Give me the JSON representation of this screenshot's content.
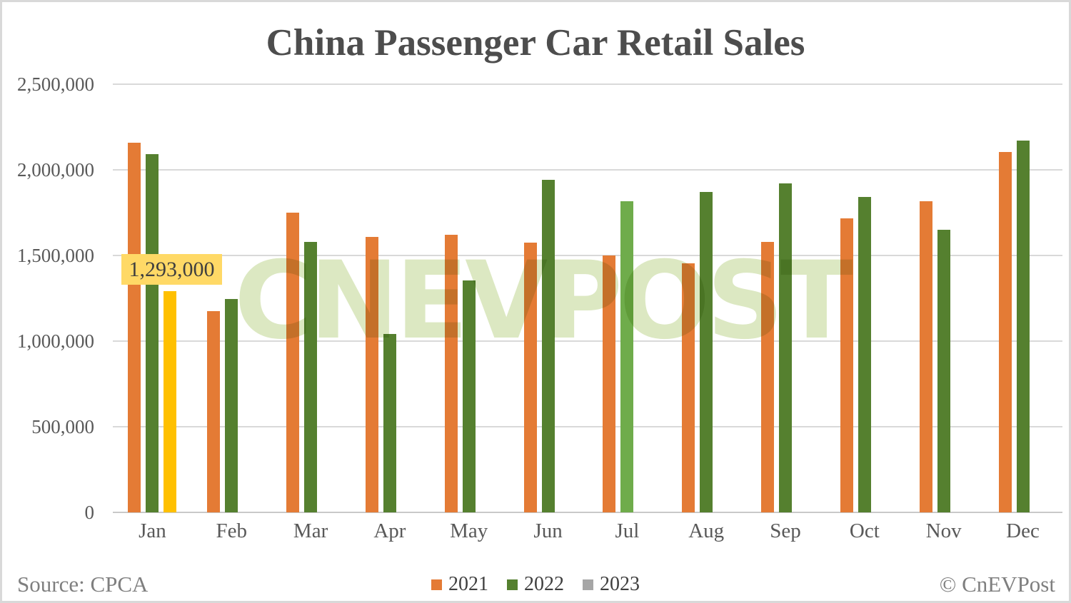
{
  "watermark": {
    "text": "CNEVPOST",
    "color": "#dce8c2"
  },
  "footer": {
    "source": "Source: CPCA",
    "copyright": "© CnEVPost"
  },
  "annotation": {
    "text": "1,293,000",
    "background": "#FFD966",
    "applies_to": "Jan 2023 bar"
  },
  "colors": {
    "gridline": "#d9d9d9",
    "axis_text": "#595959",
    "title_text": "#4d4d4d",
    "footer_text": "#7f7f7f",
    "highlight_bar": "#FFC000"
  },
  "chart_data": {
    "type": "bar",
    "title": "China Passenger Car Retail Sales",
    "xlabel": "",
    "ylabel": "",
    "categories": [
      "Jan",
      "Feb",
      "Mar",
      "Apr",
      "May",
      "Jun",
      "Jul",
      "Aug",
      "Sep",
      "Oct",
      "Nov",
      "Dec"
    ],
    "series": [
      {
        "name": "2021",
        "color": "#E47B35",
        "legend_color": "#E47B35",
        "values": [
          2160000,
          1177000,
          1750000,
          1608000,
          1623000,
          1575000,
          1500000,
          1453000,
          1581000,
          1717000,
          1816000,
          2103000
        ]
      },
      {
        "name": "2022",
        "color": "#55802F",
        "legend_color": "#55802F",
        "color_overrides": {
          "6": "#6FAC4B"
        },
        "values": [
          2092000,
          1246000,
          1578000,
          1043000,
          1354000,
          1942000,
          1817000,
          1873000,
          1921000,
          1843000,
          1651000,
          2170000
        ]
      },
      {
        "name": "2023",
        "color": "#FFC000",
        "legend_color": "#A6A6A6",
        "values": [
          1293000,
          null,
          null,
          null,
          null,
          null,
          null,
          null,
          null,
          null,
          null,
          null
        ]
      }
    ],
    "ylim": [
      0,
      2500000
    ],
    "yticks": [
      {
        "value": 0,
        "label": "0"
      },
      {
        "value": 500000,
        "label": "500,000"
      },
      {
        "value": 1000000,
        "label": "1,000,000"
      },
      {
        "value": 1500000,
        "label": "1,500,000"
      },
      {
        "value": 2000000,
        "label": "2,000,000"
      },
      {
        "value": 2500000,
        "label": "2,500,000"
      }
    ],
    "grid": true,
    "legend_position": "bottom"
  }
}
